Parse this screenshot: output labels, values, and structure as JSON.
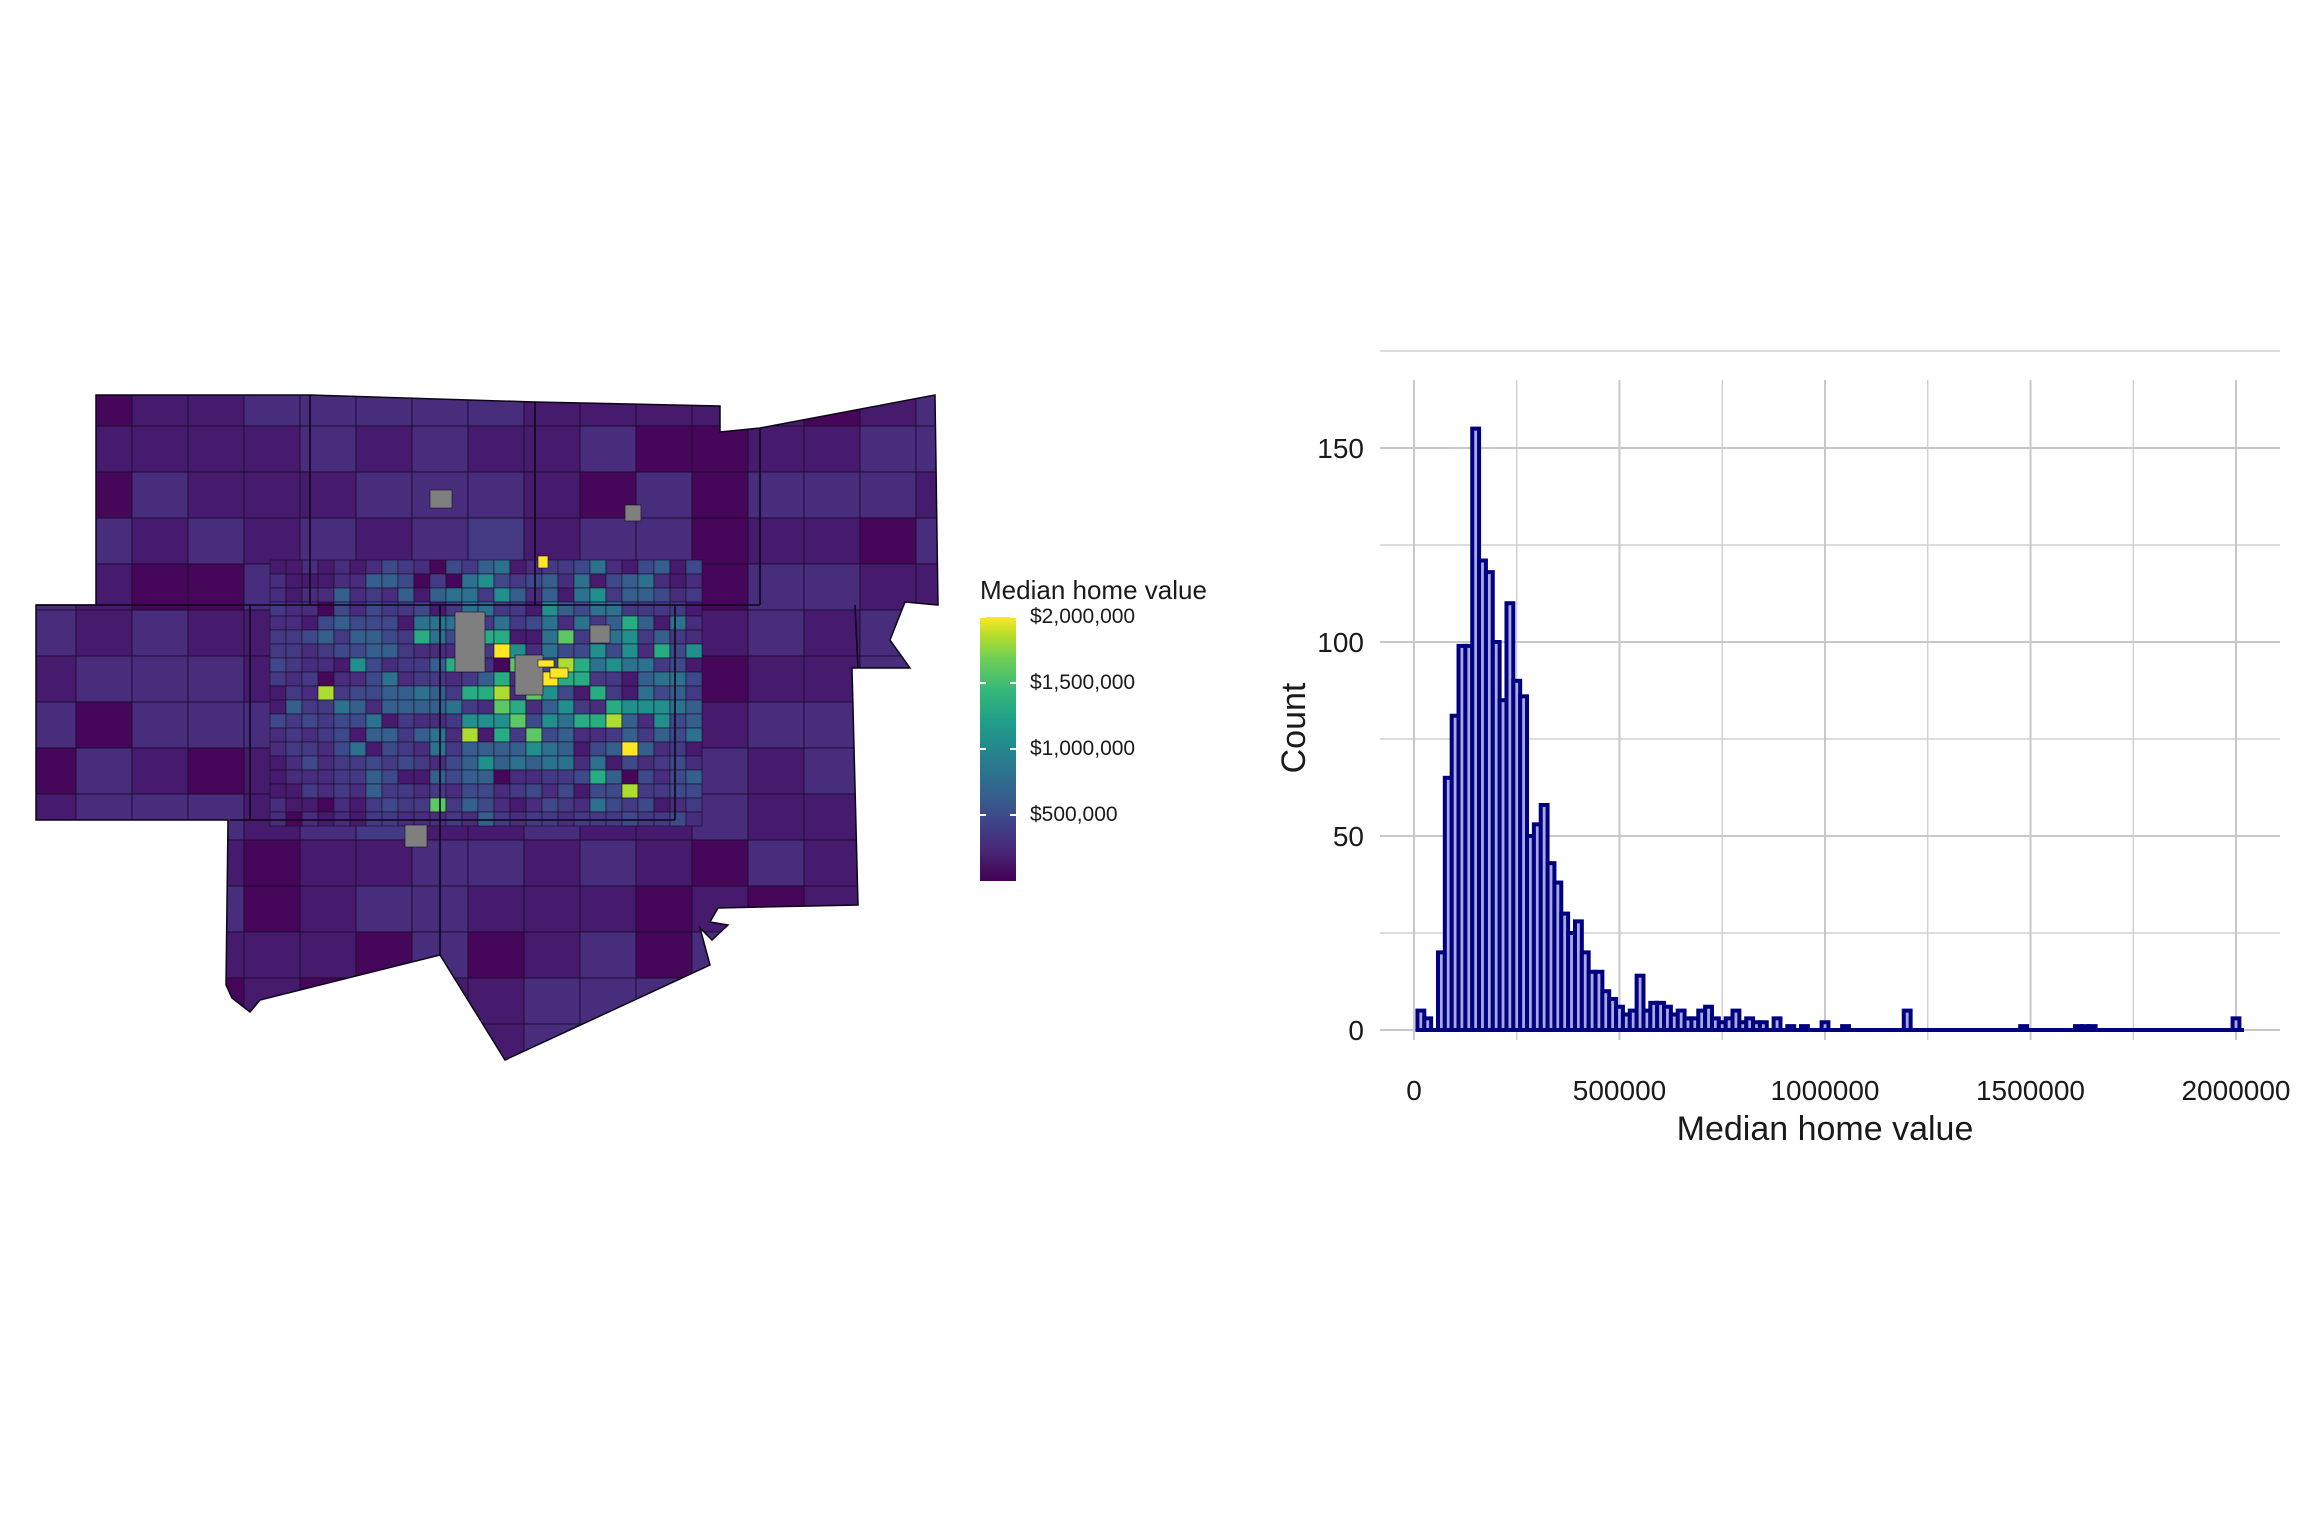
{
  "legend": {
    "title": "Median home value",
    "labels": [
      "$2,000,000",
      "$1,500,000",
      "$1,000,000",
      "$500,000"
    ],
    "label_values": [
      2000000,
      1500000,
      1000000,
      500000
    ],
    "range": [
      0,
      2000000
    ],
    "palette": "viridis"
  },
  "colors": {
    "map_low": "#440154",
    "map_mid": "#3e4989",
    "map_high": "#fde725",
    "missing": "#7f7f7f",
    "hist_fill": "#a9a9e0",
    "hist_stroke": "#000080",
    "grid": "#c8c8c8"
  },
  "chart_data": [
    {
      "type": "map",
      "legend_title": "Median home value"
    },
    {
      "type": "bar",
      "xlabel": "Median home value",
      "ylabel": "Count",
      "xlim": [
        0,
        2000000
      ],
      "ylim": [
        0,
        160
      ],
      "x_ticks": [
        0,
        500000,
        1000000,
        1500000,
        2000000
      ],
      "x_tick_labels": [
        "0",
        "500000",
        "1000000",
        "1500000",
        "2000000"
      ],
      "y_ticks": [
        0,
        50,
        100,
        150
      ],
      "y_tick_labels": [
        "0",
        "50",
        "100",
        "150"
      ],
      "grid": true,
      "bin_width": 16667,
      "bins_x": [
        16667,
        33333,
        66667,
        83333,
        100000,
        116667,
        133333,
        150000,
        166667,
        183333,
        200000,
        216667,
        233333,
        250000,
        266667,
        283333,
        300000,
        316667,
        333333,
        350000,
        366667,
        383333,
        400000,
        416667,
        433333,
        450000,
        466667,
        483333,
        500000,
        516667,
        533333,
        550000,
        566667,
        583333,
        600000,
        616667,
        633333,
        650000,
        666667,
        683333,
        700000,
        716667,
        733333,
        750000,
        766667,
        783333,
        800000,
        816667,
        833333,
        850000,
        883333,
        916667,
        950000,
        1000000,
        1050000,
        1200000,
        1483333,
        1616667,
        1633333,
        1650000,
        2000000
      ],
      "counts": [
        5,
        3,
        20,
        65,
        81,
        99,
        99,
        155,
        121,
        118,
        100,
        85,
        110,
        90,
        86,
        50,
        53,
        58,
        43,
        38,
        30,
        25,
        28,
        20,
        15,
        15,
        10,
        8,
        6,
        4,
        5,
        14,
        5,
        7,
        7,
        6,
        4,
        5,
        3,
        3,
        5,
        6,
        3,
        2,
        3,
        5,
        2,
        3,
        2,
        2,
        3,
        1,
        1,
        2,
        1,
        5,
        1,
        1,
        1,
        1,
        3
      ]
    }
  ]
}
